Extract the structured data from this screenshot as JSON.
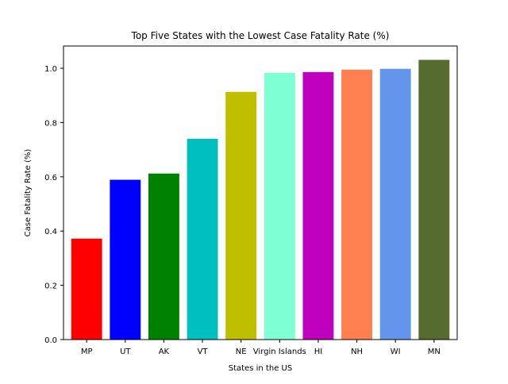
{
  "chart_data": {
    "type": "bar",
    "title": "Top Five States with the Lowest Case Fatality Rate (%)",
    "xlabel": "States in the US",
    "ylabel": "Case Fatality Rate (%)",
    "categories": [
      "MP",
      "UT",
      "AK",
      "VT",
      "NE",
      "Virgin Islands",
      "HI",
      "NH",
      "WI",
      "MN"
    ],
    "values": [
      0.372,
      0.589,
      0.612,
      0.74,
      0.913,
      0.983,
      0.986,
      0.995,
      0.998,
      1.031
    ],
    "colors": [
      "#ff0000",
      "#0000ff",
      "#008000",
      "#00bfbf",
      "#bfbf00",
      "#7fffd4",
      "#bf00bf",
      "#ff7f50",
      "#6495ed",
      "#556b2f"
    ],
    "ylim": [
      0,
      1.082
    ],
    "yticks": [
      "0.0",
      "0.2",
      "0.4",
      "0.6",
      "0.8",
      "1.0"
    ],
    "ytick_values": [
      0.0,
      0.2,
      0.4,
      0.6,
      0.8,
      1.0
    ],
    "grid": false,
    "legend": "none"
  }
}
